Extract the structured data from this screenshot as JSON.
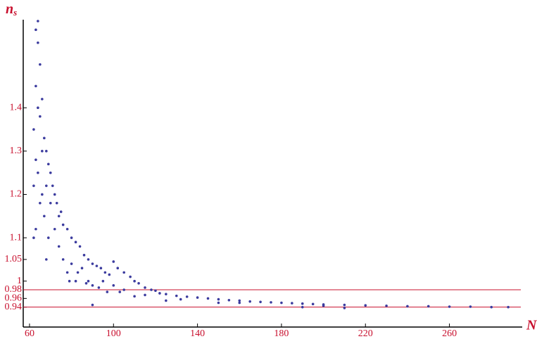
{
  "chart_data": {
    "type": "scatter",
    "x_label": "N",
    "y_label": {
      "main": "n",
      "sub": "s"
    },
    "xlim": [
      57,
      294
    ],
    "ylim": [
      0.894,
      1.6
    ],
    "xticks": [
      60,
      100,
      140,
      180,
      220,
      260
    ],
    "yticks": [
      0.94,
      0.96,
      0.98,
      1,
      1.05,
      1.1,
      1.2,
      1.3,
      1.4
    ],
    "reference_lines": [
      0.98,
      0.94
    ],
    "reference_color": "#c8102e",
    "series": [
      {
        "color": "#3b3b9e",
        "x": [
          63,
          64,
          64,
          65,
          63,
          64,
          62,
          65,
          66,
          63,
          62,
          64,
          66,
          67,
          68,
          65,
          63,
          62,
          66,
          67,
          68,
          69,
          70,
          70,
          69,
          68,
          71,
          72,
          72,
          73,
          74,
          74,
          75,
          76,
          76,
          78,
          78,
          80,
          80,
          82,
          82,
          84,
          85,
          86,
          88,
          88,
          90,
          90,
          92,
          94,
          95,
          96,
          98,
          100,
          100,
          102,
          105,
          105,
          108,
          110,
          112,
          115,
          118,
          120,
          122,
          125,
          130,
          135,
          140,
          145,
          150,
          155,
          160,
          165,
          170,
          175,
          180,
          185,
          190,
          195,
          200,
          210,
          220,
          230,
          240,
          250,
          260,
          270,
          280,
          288,
          90,
          97,
          110,
          125,
          150,
          190,
          210,
          79,
          83,
          87,
          93,
          103,
          115,
          132,
          160,
          200
        ],
        "values": [
          1.58,
          1.6,
          1.55,
          1.5,
          1.45,
          1.4,
          1.35,
          1.38,
          1.42,
          1.28,
          1.22,
          1.25,
          1.3,
          1.33,
          1.3,
          1.18,
          1.12,
          1.1,
          1.2,
          1.15,
          1.22,
          1.27,
          1.25,
          1.18,
          1.1,
          1.05,
          1.22,
          1.2,
          1.12,
          1.18,
          1.15,
          1.08,
          1.16,
          1.13,
          1.05,
          1.12,
          1.02,
          1.1,
          1.04,
          1.09,
          1.0,
          1.08,
          1.03,
          1.06,
          1.05,
          1.0,
          1.04,
          0.99,
          1.035,
          1.03,
          1.0,
          1.02,
          1.015,
          1.045,
          0.99,
          1.03,
          1.02,
          0.98,
          1.01,
          1.0,
          0.995,
          0.985,
          0.98,
          0.978,
          0.972,
          0.97,
          0.966,
          0.964,
          0.962,
          0.96,
          0.958,
          0.956,
          0.955,
          0.953,
          0.952,
          0.951,
          0.95,
          0.949,
          0.948,
          0.947,
          0.946,
          0.945,
          0.944,
          0.943,
          0.942,
          0.942,
          0.941,
          0.941,
          0.94,
          0.94,
          0.945,
          0.975,
          0.965,
          0.955,
          0.95,
          0.94,
          0.938,
          1.0,
          1.02,
          0.995,
          0.985,
          0.975,
          0.968,
          0.958,
          0.95,
          0.943
        ]
      }
    ]
  }
}
